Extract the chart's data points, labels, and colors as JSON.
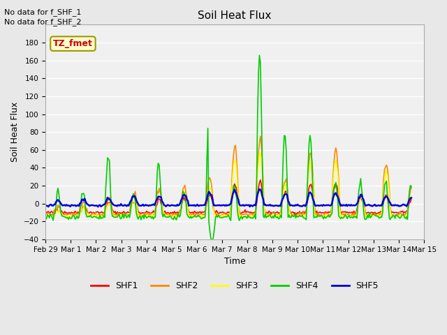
{
  "title": "Soil Heat Flux",
  "ylabel": "Soil Heat Flux",
  "xlabel": "Time",
  "annotations": [
    "No data for f_SHF_1",
    "No data for f_SHF_2"
  ],
  "legend_label": "TZ_fmet",
  "series_names": [
    "SHF1",
    "SHF2",
    "SHF3",
    "SHF4",
    "SHF5"
  ],
  "series_colors": [
    "#ff0000",
    "#ff8800",
    "#ffff00",
    "#00cc00",
    "#0000dd"
  ],
  "ylim": [
    -40,
    200
  ],
  "yticks": [
    -40,
    -20,
    0,
    20,
    40,
    60,
    80,
    100,
    120,
    140,
    160,
    180
  ],
  "bg_color": "#e8e8e8",
  "plot_bg": "#f0f0f0",
  "n_points": 384,
  "end_day": 14.5,
  "tick_positions": [
    0,
    1,
    2,
    3,
    4,
    5,
    6,
    7,
    8,
    9,
    10,
    11,
    12,
    13,
    14,
    15
  ],
  "tick_labels": [
    "Feb 29",
    "Mar 1",
    "Mar 2",
    "Mar 3",
    "Mar 4",
    "Mar 5",
    "Mar 6",
    "Mar 7",
    "Mar 8",
    "Mar 9",
    "Mar 10",
    "Mar 11",
    "Mar 12",
    "Mar 13",
    "Mar 14",
    "Mar 15"
  ]
}
